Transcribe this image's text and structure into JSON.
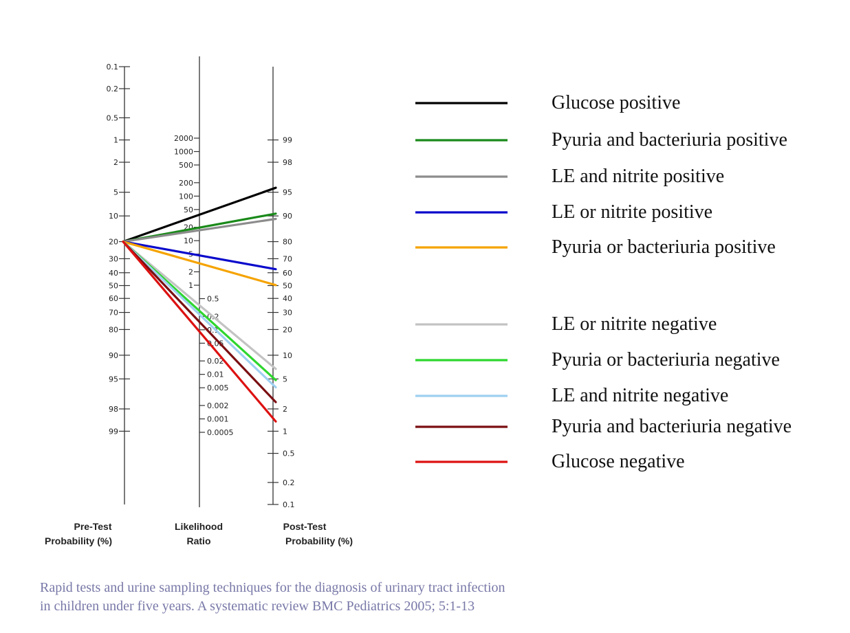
{
  "chart_data": {
    "type": "nomogram",
    "pretest_probability_pct": 20,
    "axes": {
      "pretest": {
        "label_line1": "Pre-Test",
        "label_line2": "Probability (%)",
        "ticks": [
          "0.1",
          "0.2",
          "0.5",
          "1",
          "2",
          "5",
          "10",
          "20",
          "30",
          "40",
          "50",
          "60",
          "70",
          "80",
          "90",
          "95",
          "98",
          "99"
        ]
      },
      "likelihood_ratio": {
        "label_line1": "Likelihood",
        "label_line2": "Ratio",
        "ticks": [
          "2000",
          "1000",
          "500",
          "200",
          "100",
          "50",
          "20",
          "10",
          "5",
          "2",
          "1",
          "0.5",
          "0.2",
          "0.1",
          "0.05",
          "0.02",
          "0.01",
          "0.005",
          "0.002",
          "0.001",
          "0.0005"
        ]
      },
      "posttest": {
        "label_line1": "Post-Test",
        "label_line2": "Probability (%)",
        "ticks": [
          "99",
          "98",
          "95",
          "90",
          "80",
          "70",
          "60",
          "50",
          "40",
          "30",
          "20",
          "10",
          "5",
          "2",
          "1",
          "0.5",
          "0.2",
          "0.1"
        ]
      }
    },
    "series": [
      {
        "name": "Glucose positive",
        "color": "#000000",
        "posttest_pct": 95.5
      },
      {
        "name": "Pyuria and bacteriuria positive",
        "color": "#1a8a1a",
        "posttest_pct": 90.5
      },
      {
        "name": "LE and nitrite positive",
        "color": "#8c8c8c",
        "posttest_pct": 89
      },
      {
        "name": "LE or nitrite positive",
        "color": "#0a0acc",
        "posttest_pct": 63
      },
      {
        "name": "Pyuria or bacteriuria positive",
        "color": "#f5a300",
        "posttest_pct": 51
      },
      {
        "name": "LE or nitrite negative",
        "color": "#c3c3c3",
        "posttest_pct": 7.2
      },
      {
        "name": "Pyuria or bacteriuria negative",
        "color": "#2ed62e",
        "posttest_pct": 5.2
      },
      {
        "name": "LE and nitrite negative",
        "color": "#9fd0f0",
        "posttest_pct": 4.2
      },
      {
        "name": "Pyuria and bacteriuria negative",
        "color": "#7a0f12",
        "posttest_pct": 2.7
      },
      {
        "name": "Glucose negative",
        "color": "#dd1111",
        "posttest_pct": 1.5
      }
    ]
  },
  "caption": {
    "line1": "Rapid tests and urine sampling techniques for the diagnosis of urinary tract infection",
    "line2": "in children under five years. A systematic review BMC Pediatrics 2005; 5:1-13"
  }
}
